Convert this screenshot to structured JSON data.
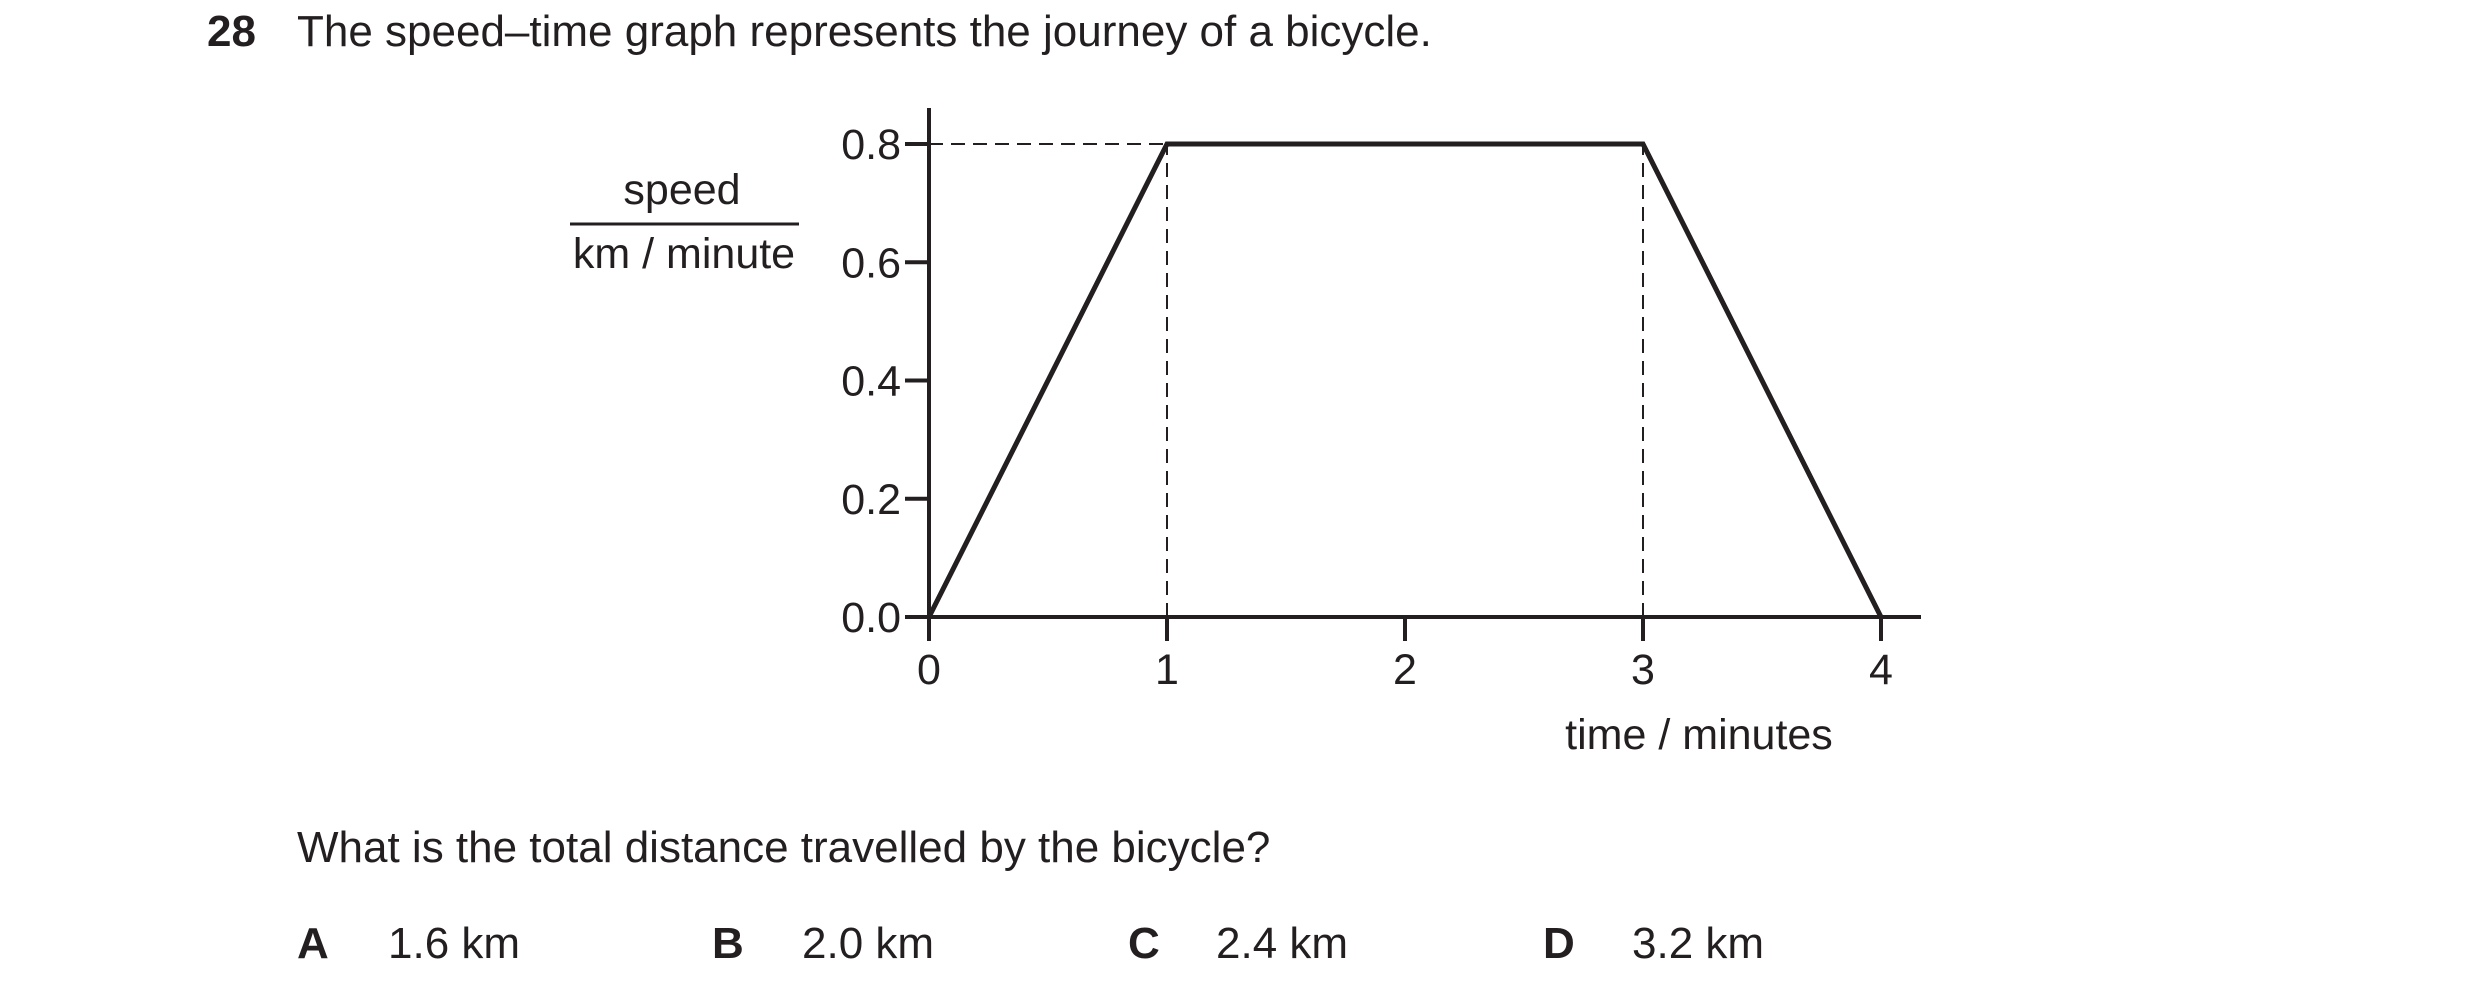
{
  "question": {
    "number": "28",
    "text": "The speed–time graph represents the journey of a bicycle.",
    "prompt": "What is the total distance travelled by the bicycle?"
  },
  "options": [
    {
      "letter": "A",
      "value": "1.6 km"
    },
    {
      "letter": "B",
      "value": "2.0 km"
    },
    {
      "letter": "C",
      "value": "2.4 km"
    },
    {
      "letter": "D",
      "value": "3.2 km"
    }
  ],
  "chart_data": {
    "type": "line",
    "title": "",
    "xlabel": "time / minutes",
    "ylabel_top": "speed",
    "ylabel_bottom": "km / minute",
    "xlim": [
      0,
      4
    ],
    "ylim": [
      0,
      0.8
    ],
    "xticks": [
      0,
      1,
      2,
      3,
      4
    ],
    "xtick_labels": [
      "0",
      "1",
      "2",
      "3",
      "4"
    ],
    "yticks": [
      0,
      0.2,
      0.4,
      0.6,
      0.8
    ],
    "ytick_labels": [
      "0.0",
      "0.2",
      "0.4",
      "0.6",
      "0.8"
    ],
    "grid": false,
    "series": [
      {
        "x": [
          0,
          1,
          3,
          4
        ],
        "y": [
          0,
          0.8,
          0.8,
          0
        ]
      }
    ],
    "reference_lines": [
      {
        "from": [
          0,
          0.8
        ],
        "to": [
          1,
          0.8
        ],
        "style": "dashed"
      },
      {
        "from": [
          1,
          0
        ],
        "to": [
          1,
          0.8
        ],
        "style": "dashed"
      },
      {
        "from": [
          3,
          0
        ],
        "to": [
          3,
          0.8
        ],
        "style": "dashed"
      }
    ],
    "colors": {
      "line": "#231f20",
      "axis": "#231f20"
    }
  }
}
